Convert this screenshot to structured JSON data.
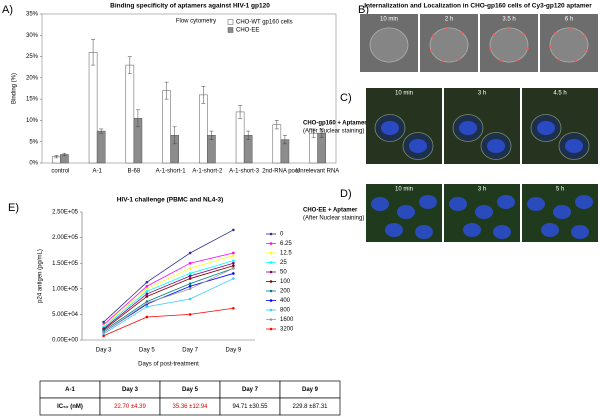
{
  "chart_data": [
    {
      "type": "bar",
      "panel": "A)",
      "title": "Binding specificity of aptamers against HIV-1 gp120",
      "annotation": "Flow cytometry",
      "y_label": "Binding (%)",
      "categories": [
        "control",
        "A-1",
        "B-68",
        "A-1-short-1",
        "A-1-short-2",
        "A-1-short-3",
        "2nd-RNA pool",
        "Unrelevant RNA"
      ],
      "series": [
        {
          "name": "CHO-WT gp160 cells",
          "color": "#ffffff",
          "values": [
            1.5,
            26,
            23,
            17,
            16,
            12,
            9,
            7
          ],
          "errors": [
            0.3,
            3,
            2,
            2,
            2,
            1.5,
            1,
            1
          ]
        },
        {
          "name": "CHO-EE",
          "color": "#8c8c8c",
          "values": [
            2,
            7.5,
            10.5,
            6.5,
            6.5,
            6.5,
            5.5,
            7
          ],
          "errors": [
            0.3,
            0.5,
            2,
            2,
            1,
            1,
            1,
            1
          ]
        }
      ],
      "ylim": [
        0,
        35
      ],
      "yticks": [
        {
          "value": 0,
          "label": "0%"
        },
        {
          "value": 5,
          "label": "5%"
        },
        {
          "value": 10,
          "label": "10%"
        },
        {
          "value": 15,
          "label": "15%"
        },
        {
          "value": 20,
          "label": "20%"
        },
        {
          "value": 25,
          "label": "25%"
        },
        {
          "value": 30,
          "label": "30%"
        },
        {
          "value": 35,
          "label": "35%"
        }
      ],
      "grid": false
    },
    {
      "type": "line",
      "panel": "E)",
      "title": "HIV-1 challenge (PBMC and NL4-3)",
      "y_label": "p24 antigen (pg/mL)",
      "x_label": "Days of post-treatment",
      "categories": [
        "Day 3",
        "Day 5",
        "Day 7",
        "Day 9"
      ],
      "series": [
        {
          "name": "0",
          "color": "#2e3192",
          "values": [
            35000,
            113000,
            170000,
            215000
          ]
        },
        {
          "name": "6.25",
          "color": "#ff00ff",
          "values": [
            30000,
            105000,
            150000,
            170000
          ]
        },
        {
          "name": "12.5",
          "color": "#ffff00",
          "values": [
            28000,
            100000,
            140000,
            165000
          ]
        },
        {
          "name": "25",
          "color": "#00ffff",
          "values": [
            25000,
            95000,
            130000,
            155000
          ]
        },
        {
          "name": "50",
          "color": "#800080",
          "values": [
            22000,
            90000,
            125000,
            150000
          ]
        },
        {
          "name": "100",
          "color": "#800000",
          "values": [
            20000,
            85000,
            120000,
            145000
          ]
        },
        {
          "name": "200",
          "color": "#008080",
          "values": [
            18000,
            75000,
            110000,
            140000
          ]
        },
        {
          "name": "400",
          "color": "#0000ff",
          "values": [
            15000,
            70000,
            105000,
            130000
          ]
        },
        {
          "name": "800",
          "color": "#33ccff",
          "values": [
            12000,
            65000,
            80000,
            120000
          ]
        },
        {
          "name": "1600",
          "color": "#999999",
          "values": [
            15000,
            72000,
            100000,
            140000
          ]
        },
        {
          "name": "3200",
          "color": "#ff0000",
          "values": [
            8000,
            45000,
            50000,
            62000
          ]
        }
      ],
      "ylim": [
        0,
        250000
      ],
      "yticks": [
        {
          "value": 0,
          "label": "0.00E+00"
        },
        {
          "value": 50000,
          "label": "5.00E+04"
        },
        {
          "value": 100000,
          "label": "1.00E+05"
        },
        {
          "value": 150000,
          "label": "1.50E+05"
        },
        {
          "value": 200000,
          "label": "2.00E+05"
        },
        {
          "value": 250000,
          "label": "2.50E+05"
        }
      ]
    }
  ],
  "panel_b": {
    "label": "B)",
    "title": "Internalization and Localization in CHO-gp160 cells of Cy3-gp120 aptamer",
    "times": [
      "10 min",
      "2 h",
      "3.5 h",
      "6 h"
    ]
  },
  "panel_c": {
    "label": "C)",
    "condition": "CHO-gp160 + Aptamer",
    "note": "(After Nuclear staining)",
    "times": [
      "10 min",
      "3 h",
      "4.5 h"
    ]
  },
  "panel_d": {
    "label": "D)",
    "condition": "CHO-EE + Aptamer",
    "note": "(After Nuclear staining)",
    "times": [
      "10 min",
      "3 h",
      "5 h"
    ]
  },
  "table": {
    "rows": [
      [
        "A-1",
        "Day 3",
        "Day 5",
        "Day 7",
        "Day 9"
      ],
      [
        "IC₅₀ (nM)",
        "22.70 ±4.39",
        "35.36 ±12.94",
        "94.71 ±30.55",
        "229.8 ±87.31"
      ]
    ],
    "emphasis_color": "#e00000",
    "emphasized_columns": [
      1,
      2
    ]
  }
}
